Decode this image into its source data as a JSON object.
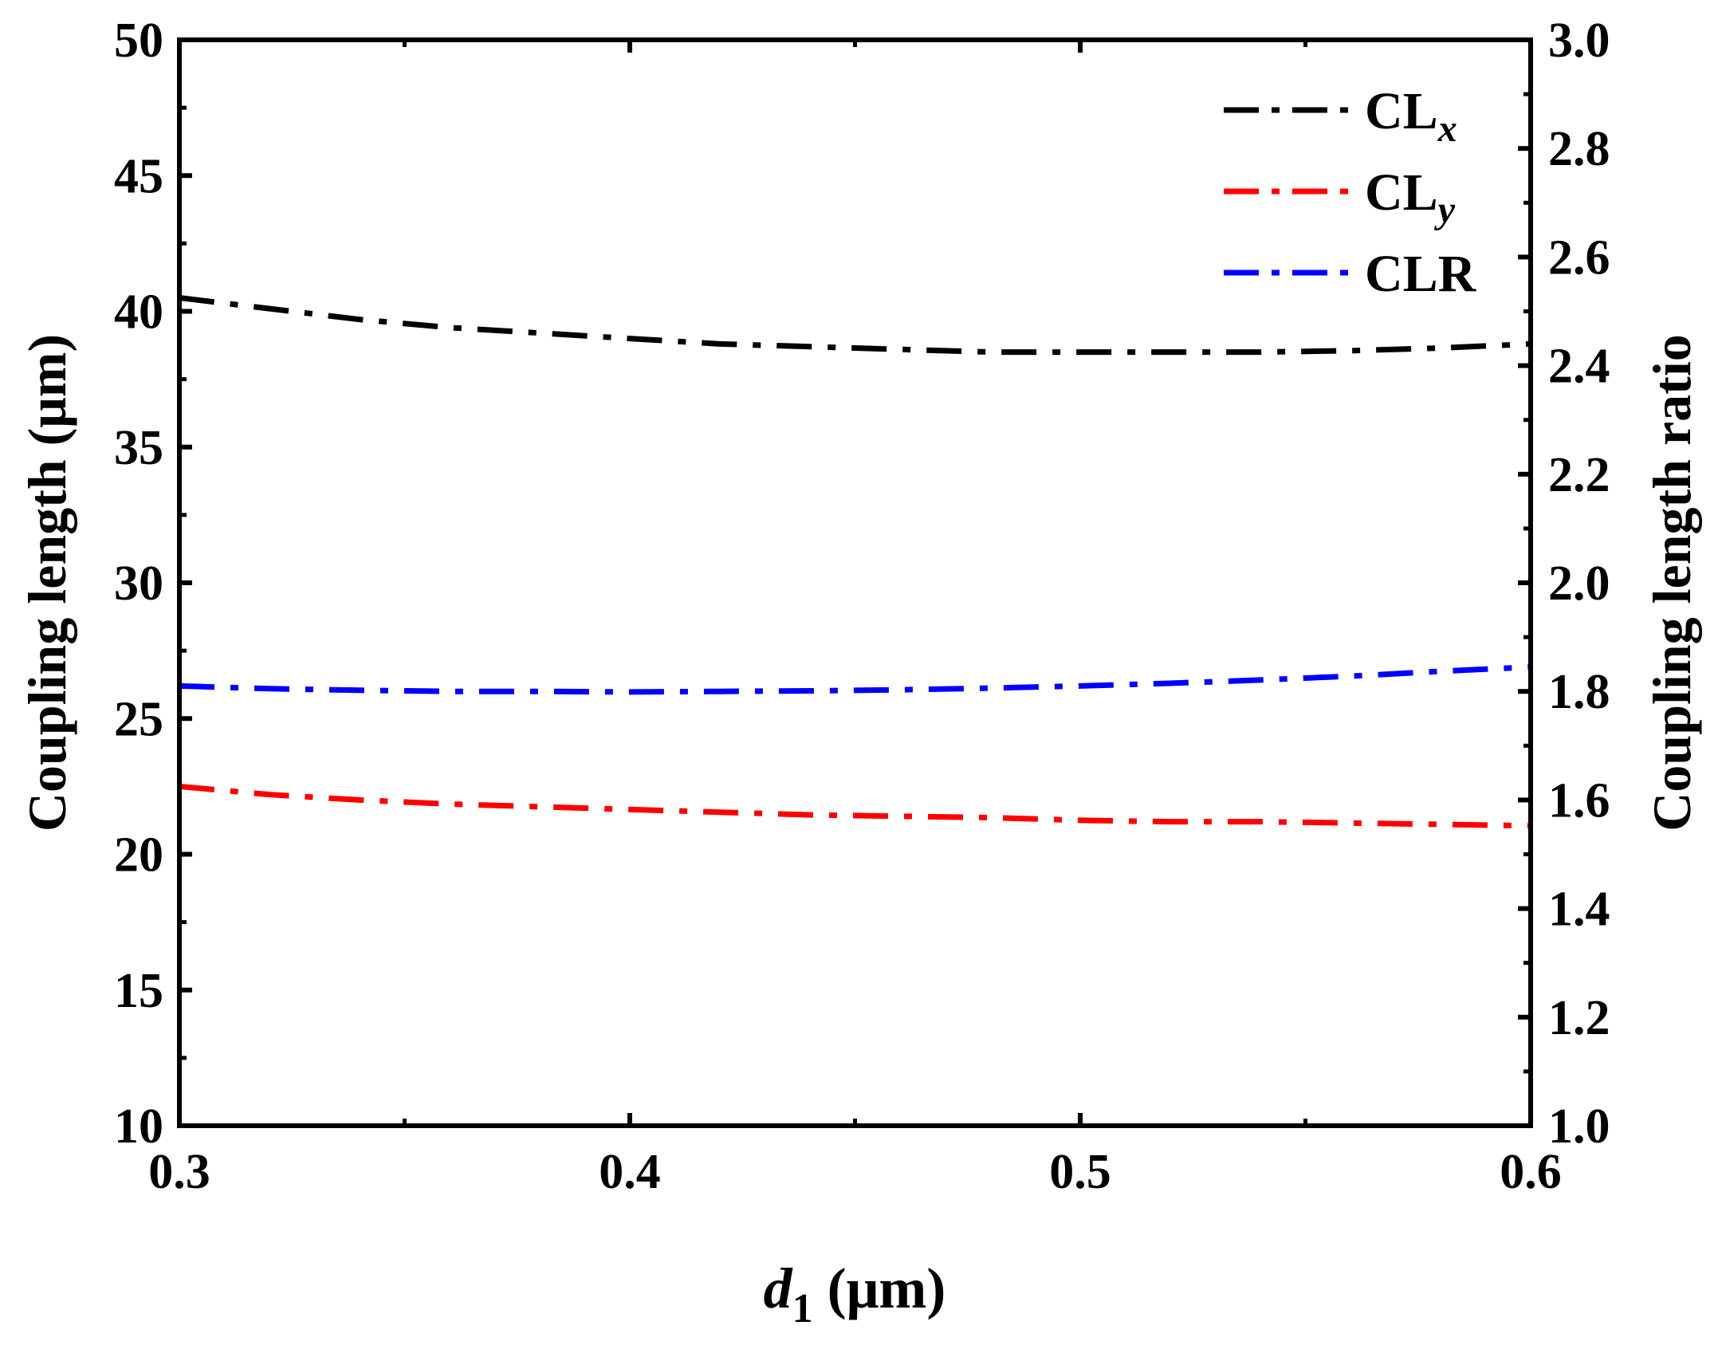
{
  "chart_data": {
    "type": "line",
    "xlabel_italic": "d",
    "xlabel_sub": "1",
    "xlabel_rest": " (μm)",
    "ylabel": "Coupling length (μm)",
    "y2label": "Coupling length ratio",
    "xlim": [
      0.3,
      0.6
    ],
    "ylim": [
      10,
      50
    ],
    "y2lim": [
      1.0,
      3.0
    ],
    "xticks": [
      "0.3",
      "0.4",
      "0.5",
      "0.6"
    ],
    "xtick_values": [
      0.3,
      0.4,
      0.5,
      0.6
    ],
    "yticks": [
      "10",
      "15",
      "20",
      "25",
      "30",
      "35",
      "40",
      "45",
      "50"
    ],
    "ytick_values": [
      10,
      15,
      20,
      25,
      30,
      35,
      40,
      45,
      50
    ],
    "y2ticks": [
      "1.0",
      "1.2",
      "1.4",
      "1.6",
      "1.8",
      "2.0",
      "2.2",
      "2.4",
      "2.6",
      "2.8",
      "3.0"
    ],
    "y2tick_values": [
      1.0,
      1.2,
      1.4,
      1.6,
      1.8,
      2.0,
      2.2,
      2.4,
      2.6,
      2.8,
      3.0
    ],
    "x": [
      0.3,
      0.32,
      0.34,
      0.36,
      0.38,
      0.4,
      0.42,
      0.44,
      0.46,
      0.48,
      0.5,
      0.52,
      0.54,
      0.56,
      0.58,
      0.6
    ],
    "series": [
      {
        "name": "CLx",
        "label_main": "CL",
        "label_sub": "x",
        "axis": "left",
        "color": "#000000",
        "values": [
          40.5,
          40.1,
          39.7,
          39.4,
          39.2,
          39.0,
          38.8,
          38.7,
          38.6,
          38.5,
          38.5,
          38.5,
          38.5,
          38.55,
          38.65,
          38.8
        ]
      },
      {
        "name": "CLy",
        "label_main": "CL",
        "label_sub": "y",
        "axis": "left",
        "color": "#ff0000",
        "values": [
          22.5,
          22.2,
          22.0,
          21.85,
          21.75,
          21.65,
          21.55,
          21.45,
          21.4,
          21.35,
          21.25,
          21.2,
          21.2,
          21.15,
          21.1,
          21.05
        ]
      },
      {
        "name": "CLR",
        "label_main": "CLR",
        "label_sub": "",
        "axis": "right",
        "color": "#0000ff",
        "values": [
          1.81,
          1.805,
          1.802,
          1.8,
          1.8,
          1.799,
          1.8,
          1.801,
          1.803,
          1.806,
          1.81,
          1.815,
          1.821,
          1.828,
          1.837,
          1.845
        ]
      }
    ],
    "legend": "top-right"
  }
}
